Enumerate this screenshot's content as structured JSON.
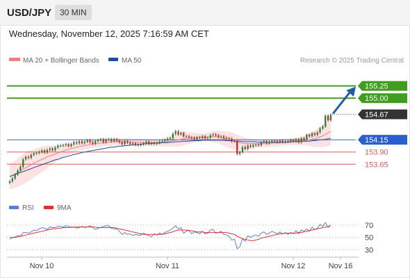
{
  "header": {
    "symbol": "USD/JPY",
    "timeframe": "30 MIN"
  },
  "datetime": "Wednesday, November 12, 2025 7:16:59 AM CET",
  "legend": {
    "ma20_label": "MA 20 + Bollinger Bands",
    "ma50_label": "MA 50",
    "credit": "Research © 2025 Trading Central"
  },
  "colors": {
    "bull": "#2e7d32",
    "bear": "#c62828",
    "ma20": "#f08080",
    "ma50": "#1f4e9c",
    "band_fill": "#fbdada",
    "resistance": "#3f9d1f",
    "support_blue": "#2a5fd0",
    "support_red": "#e05a5a",
    "price_tag": "#333333",
    "rsi": "#5b7fd6",
    "rsi_ma": "#e03030",
    "arrow": "#1f5fa8"
  },
  "chart_data": [
    {
      "type": "candlestick",
      "title": "USD/JPY",
      "ylim": [
        153.2,
        155.5
      ],
      "x_ticks": [
        "Nov 10",
        "Nov 11",
        "Nov 12",
        "Nov 16"
      ],
      "close": [
        153.3,
        153.36,
        153.44,
        153.52,
        153.6,
        153.75,
        153.8,
        153.78,
        153.84,
        153.87,
        153.88,
        153.9,
        153.93,
        153.89,
        153.94,
        153.97,
        153.94,
        153.99,
        154.03,
        154.03,
        154.04,
        154.06,
        154.02,
        154.06,
        154.1,
        154.08,
        154.12,
        154.08,
        154.11,
        154.14,
        154.1,
        154.07,
        154.12,
        154.14,
        154.16,
        154.1,
        154.15,
        154.16,
        154.12,
        154.16,
        154.13,
        154.1,
        154.06,
        154.12,
        154.09,
        154.06,
        154.08,
        154.05,
        154.04,
        154.06,
        154.08,
        154.11,
        154.07,
        154.09,
        154.07,
        154.09,
        154.11,
        154.12,
        154.14,
        154.17,
        154.18,
        154.27,
        154.32,
        154.26,
        154.29,
        154.22,
        154.22,
        154.2,
        154.19,
        154.16,
        154.2,
        154.19,
        154.22,
        154.18,
        154.19,
        154.24,
        154.26,
        154.24,
        154.21,
        154.22,
        154.19,
        154.18,
        154.17,
        154.12,
        154.13,
        153.86,
        153.9,
        154.0,
        153.96,
        154.03,
        154.01,
        154.04,
        154.05,
        154.04,
        154.1,
        154.12,
        154.08,
        154.11,
        154.13,
        154.12,
        154.1,
        154.13,
        154.1,
        154.12,
        154.11,
        154.14,
        154.12,
        154.16,
        154.1,
        154.18,
        154.16,
        154.25,
        154.22,
        154.28,
        154.25,
        154.3,
        154.38,
        154.42,
        154.64,
        154.55,
        154.66
      ],
      "open": [
        153.27,
        153.3,
        153.36,
        153.44,
        153.52,
        153.6,
        153.75,
        153.8,
        153.78,
        153.84,
        153.87,
        153.88,
        153.9,
        153.93,
        153.89,
        153.94,
        153.97,
        153.94,
        153.99,
        154.03,
        154.03,
        154.04,
        154.06,
        154.02,
        154.06,
        154.1,
        154.08,
        154.12,
        154.08,
        154.11,
        154.14,
        154.1,
        154.07,
        154.12,
        154.14,
        154.16,
        154.1,
        154.15,
        154.16,
        154.12,
        154.16,
        154.13,
        154.1,
        154.06,
        154.12,
        154.09,
        154.06,
        154.08,
        154.05,
        154.04,
        154.06,
        154.08,
        154.11,
        154.07,
        154.09,
        154.07,
        154.09,
        154.11,
        154.12,
        154.14,
        154.17,
        154.18,
        154.27,
        154.32,
        154.26,
        154.29,
        154.22,
        154.22,
        154.2,
        154.19,
        154.16,
        154.2,
        154.19,
        154.22,
        154.18,
        154.19,
        154.24,
        154.26,
        154.24,
        154.21,
        154.22,
        154.19,
        154.18,
        154.17,
        154.12,
        154.13,
        153.86,
        153.9,
        154.0,
        153.96,
        154.03,
        154.01,
        154.04,
        154.05,
        154.04,
        154.1,
        154.12,
        154.08,
        154.11,
        154.13,
        154.12,
        154.1,
        154.13,
        154.1,
        154.12,
        154.11,
        154.14,
        154.12,
        154.16,
        154.1,
        154.18,
        154.16,
        154.25,
        154.22,
        154.28,
        154.25,
        154.3,
        154.38,
        154.42,
        154.64,
        154.55
      ],
      "ma20": [
        153.4,
        153.42,
        153.45,
        153.48,
        153.51,
        153.55,
        153.58,
        153.61,
        153.64,
        153.67,
        153.7,
        153.72,
        153.75,
        153.77,
        153.8,
        153.82,
        153.84,
        153.86,
        153.88,
        153.9,
        153.92,
        153.94,
        153.95,
        153.97,
        153.98,
        154.0,
        154.01,
        154.02,
        154.03,
        154.04,
        154.05,
        154.06,
        154.07,
        154.07,
        154.08,
        154.09,
        154.09,
        154.1,
        154.1,
        154.11,
        154.11,
        154.11,
        154.11,
        154.11,
        154.11,
        154.11,
        154.1,
        154.1,
        154.1,
        154.1,
        154.09,
        154.09,
        154.09,
        154.09,
        154.09,
        154.09,
        154.09,
        154.1,
        154.1,
        154.11,
        154.12,
        154.13,
        154.14,
        154.15,
        154.16,
        154.17,
        154.18,
        154.18,
        154.19,
        154.19,
        154.2,
        154.2,
        154.2,
        154.2,
        154.21,
        154.21,
        154.21,
        154.21,
        154.2,
        154.19,
        154.18,
        154.16,
        154.15,
        154.13,
        154.12,
        154.1,
        154.09,
        154.08,
        154.07,
        154.07,
        154.07,
        154.07,
        154.07,
        154.07,
        154.07,
        154.07,
        154.07,
        154.07,
        154.08,
        154.08,
        154.09,
        154.09,
        154.1,
        154.1,
        154.1,
        154.11,
        154.11,
        154.11,
        154.12,
        154.12,
        154.13,
        154.14,
        154.15,
        154.16,
        154.17,
        154.19,
        154.21,
        154.23,
        154.26,
        154.29,
        154.32
      ],
      "ma50": [
        153.4,
        153.42,
        153.44,
        153.46,
        153.48,
        153.5,
        153.52,
        153.54,
        153.56,
        153.58,
        153.6,
        153.62,
        153.64,
        153.66,
        153.68,
        153.7,
        153.72,
        153.74,
        153.75,
        153.77,
        153.79,
        153.8,
        153.82,
        153.83,
        153.85,
        153.86,
        153.87,
        153.89,
        153.9,
        153.91,
        153.92,
        153.93,
        153.94,
        153.95,
        153.96,
        153.97,
        153.98,
        153.99,
        154.0,
        154.0,
        154.01,
        154.02,
        154.02,
        154.03,
        154.03,
        154.04,
        154.04,
        154.05,
        154.05,
        154.06,
        154.06,
        154.07,
        154.07,
        154.07,
        154.08,
        154.08,
        154.08,
        154.09,
        154.09,
        154.09,
        154.1,
        154.1,
        154.11,
        154.11,
        154.11,
        154.12,
        154.12,
        154.12,
        154.13,
        154.13,
        154.13,
        154.13,
        154.14,
        154.14,
        154.14,
        154.14,
        154.14,
        154.14,
        154.14,
        154.14,
        154.14,
        154.13,
        154.13,
        154.13,
        154.12,
        154.12,
        154.12,
        154.11,
        154.11,
        154.11,
        154.11,
        154.11,
        154.11,
        154.1,
        154.1,
        154.1,
        154.1,
        154.1,
        154.1,
        154.1,
        154.1,
        154.1,
        154.1,
        154.1,
        154.1,
        154.11,
        154.11,
        154.11,
        154.11,
        154.11,
        154.12,
        154.12,
        154.12,
        154.13,
        154.13,
        154.14,
        154.15,
        154.15,
        154.16,
        154.17,
        154.18
      ],
      "bb_width": [
        0.26,
        0.27,
        0.28,
        0.29,
        0.3,
        0.31,
        0.31,
        0.31,
        0.3,
        0.29,
        0.28,
        0.27,
        0.26,
        0.25,
        0.23,
        0.21,
        0.19,
        0.17,
        0.15,
        0.14,
        0.13,
        0.12,
        0.11,
        0.1,
        0.09,
        0.09,
        0.08,
        0.08,
        0.08,
        0.08,
        0.08,
        0.08,
        0.08,
        0.08,
        0.08,
        0.08,
        0.08,
        0.08,
        0.08,
        0.07,
        0.07,
        0.07,
        0.07,
        0.07,
        0.07,
        0.07,
        0.07,
        0.07,
        0.07,
        0.07,
        0.07,
        0.07,
        0.07,
        0.07,
        0.07,
        0.07,
        0.07,
        0.08,
        0.09,
        0.1,
        0.11,
        0.12,
        0.13,
        0.14,
        0.14,
        0.14,
        0.13,
        0.12,
        0.11,
        0.1,
        0.09,
        0.08,
        0.08,
        0.08,
        0.09,
        0.1,
        0.11,
        0.12,
        0.13,
        0.14,
        0.15,
        0.16,
        0.17,
        0.17,
        0.16,
        0.15,
        0.14,
        0.13,
        0.12,
        0.11,
        0.1,
        0.09,
        0.08,
        0.08,
        0.07,
        0.07,
        0.07,
        0.07,
        0.07,
        0.07,
        0.07,
        0.07,
        0.07,
        0.07,
        0.07,
        0.07,
        0.07,
        0.07,
        0.08,
        0.09,
        0.1,
        0.11,
        0.13,
        0.15,
        0.17,
        0.19,
        0.21,
        0.23,
        0.25,
        0.27,
        0.29
      ],
      "levels": [
        {
          "label": "155.25",
          "value": 155.25,
          "kind": "resistance"
        },
        {
          "label": "155.00",
          "value": 155.0,
          "kind": "resistance"
        },
        {
          "label": "154.67",
          "value": 154.67,
          "kind": "last"
        },
        {
          "label": "154.15",
          "value": 154.15,
          "kind": "pivot"
        },
        {
          "label": "153.90",
          "value": 153.9,
          "kind": "support"
        },
        {
          "label": "153.65",
          "value": 153.65,
          "kind": "support"
        }
      ],
      "arrow": {
        "from": 154.67,
        "to": 155.25
      }
    },
    {
      "type": "line",
      "title": "RSI",
      "series": [
        {
          "name": "RSI"
        },
        {
          "name": "9MA"
        }
      ],
      "ylim": [
        25,
        80
      ],
      "y_ticks": [
        70,
        50,
        30
      ],
      "rsi": [
        47,
        50,
        51,
        53,
        52,
        58,
        58,
        57,
        59,
        62,
        61,
        64,
        66,
        65,
        63,
        67,
        66,
        66,
        68,
        68,
        67,
        69,
        68,
        66,
        67,
        65,
        66,
        68,
        66,
        67,
        69,
        66,
        63,
        65,
        66,
        68,
        69,
        69,
        65,
        64,
        64,
        60,
        55,
        58,
        55,
        56,
        53,
        55,
        54,
        54,
        57,
        55,
        53,
        51,
        56,
        54,
        57,
        55,
        58,
        60,
        62,
        65,
        69,
        64,
        66,
        57,
        60,
        62,
        56,
        59,
        58,
        56,
        60,
        56,
        57,
        62,
        63,
        57,
        58,
        60,
        55,
        54,
        52,
        46,
        47,
        32,
        35,
        48,
        44,
        53,
        50,
        53,
        54,
        52,
        57,
        59,
        55,
        57,
        60,
        58,
        56,
        59,
        56,
        58,
        55,
        58,
        56,
        61,
        56,
        62,
        60,
        64,
        60,
        67,
        63,
        65,
        71,
        68,
        74,
        66,
        70
      ],
      "rsi_ma": [
        50,
        50,
        50,
        51,
        52,
        53,
        54,
        55,
        56,
        57,
        58,
        59,
        60,
        61,
        62,
        63,
        64,
        64,
        65,
        65,
        66,
        66,
        66,
        67,
        67,
        67,
        67,
        67,
        67,
        67,
        67,
        67,
        67,
        66,
        66,
        66,
        66,
        66,
        66,
        66,
        65,
        64,
        63,
        62,
        61,
        60,
        59,
        58,
        57,
        56,
        55,
        55,
        55,
        55,
        55,
        55,
        55,
        55,
        56,
        57,
        58,
        59,
        61,
        62,
        62,
        62,
        62,
        61,
        61,
        60,
        59,
        59,
        59,
        58,
        58,
        58,
        58,
        58,
        58,
        58,
        58,
        58,
        57,
        56,
        55,
        52,
        50,
        48,
        47,
        46,
        45,
        45,
        46,
        47,
        49,
        50,
        51,
        52,
        53,
        54,
        55,
        56,
        56,
        57,
        57,
        57,
        57,
        57,
        58,
        58,
        59,
        60,
        61,
        62,
        63,
        64,
        65,
        66,
        67,
        68,
        69
      ]
    }
  ]
}
